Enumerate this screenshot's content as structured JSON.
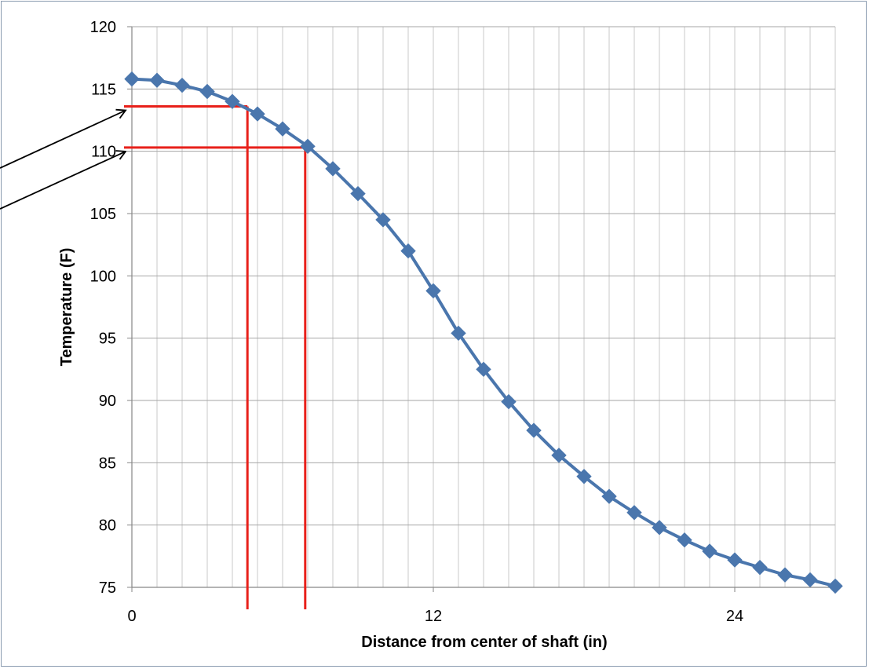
{
  "chart_data": {
    "type": "line",
    "title": "",
    "xlabel": "Distance from center of shaft (in)",
    "ylabel": "Temperature (F)",
    "xlim": [
      0,
      28
    ],
    "ylim": [
      75,
      120
    ],
    "x_ticks": [
      0,
      12,
      24
    ],
    "y_ticks": [
      75,
      80,
      85,
      90,
      95,
      100,
      105,
      110,
      115,
      120
    ],
    "grid": true,
    "legend": "none",
    "series": [
      {
        "color": "#4a76ad",
        "marker": "diamond",
        "x": [
          0,
          1,
          2,
          3,
          4,
          5,
          6,
          7,
          8,
          9,
          10,
          11,
          12,
          13,
          14,
          15,
          16,
          17,
          18,
          19,
          20,
          21,
          22,
          23,
          24,
          25,
          26,
          27,
          28
        ],
        "y": [
          115.8,
          115.7,
          115.3,
          114.8,
          114.0,
          113.0,
          111.8,
          110.4,
          108.6,
          106.6,
          104.5,
          102.0,
          98.8,
          95.4,
          92.5,
          89.9,
          87.6,
          85.6,
          83.9,
          82.3,
          81.0,
          79.8,
          78.8,
          77.9,
          77.2,
          76.6,
          76.0,
          75.6,
          75.1
        ]
      }
    ],
    "annotations": {
      "color": "#e8201a",
      "reference_lines": [
        {
          "x": 4.6,
          "y": 113.6
        },
        {
          "x": 6.9,
          "y": 110.3
        }
      ],
      "arrows": [
        {
          "target_y": 113.6
        },
        {
          "target_y": 110.3
        }
      ]
    }
  }
}
